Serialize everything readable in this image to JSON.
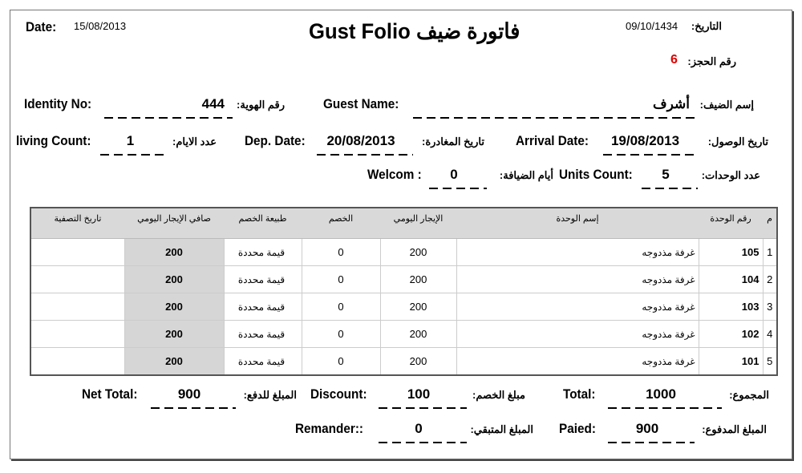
{
  "header": {
    "date_label": "Date:",
    "date_value": "15/08/2013",
    "title": "Gust Folio فاتورة ضيف",
    "hijri_label": "التاريخ:",
    "hijri_value": "09/10/1434",
    "booking_label": "رقم الحجز:",
    "booking_value": "6",
    "booking_color": "#e00000"
  },
  "guest": {
    "identity_label": "Identity No:",
    "identity_value": "444",
    "identity_label_ar": "رقم الهوية:",
    "name_label": "Guest Name:",
    "name_value": "أشرف",
    "name_label_ar": "إسم الضيف:",
    "living_label": "living Count:",
    "living_value": "1",
    "living_label_ar": "عدد الايام:",
    "dep_label": "Dep. Date:",
    "dep_value": "20/08/2013",
    "dep_label_ar": "تاريخ المغادرة:",
    "arr_label": "Arrival Date:",
    "arr_value": "19/08/2013",
    "arr_label_ar": "تاريخ الوصول:",
    "welcom_label": "Welcom :",
    "welcom_value": "0",
    "welcom_label_ar": "أيام الضيافة:",
    "units_label": "Units Count:",
    "units_value": "5",
    "units_label_ar": "عدد الوحدات:"
  },
  "table": {
    "headers": [
      "تاريخ التصفية",
      "صافي الإيجار اليومي",
      "طبيعة الخصم",
      "الخصم",
      "الإيجار اليومي",
      "إسم الوحدة",
      "رقم الوحدة",
      "م"
    ],
    "rows": [
      {
        "settle": "",
        "net": "200",
        "type": "قيمة محددة",
        "disc": "0",
        "rent": "200",
        "name": "غرفة مذدوجه",
        "unit": "105",
        "idx": "1"
      },
      {
        "settle": "",
        "net": "200",
        "type": "قيمة محددة",
        "disc": "0",
        "rent": "200",
        "name": "غرفة مذدوجه",
        "unit": "104",
        "idx": "2"
      },
      {
        "settle": "",
        "net": "200",
        "type": "قيمة محددة",
        "disc": "0",
        "rent": "200",
        "name": "غرفة مذدوجه",
        "unit": "103",
        "idx": "3"
      },
      {
        "settle": "",
        "net": "200",
        "type": "قيمة محددة",
        "disc": "0",
        "rent": "200",
        "name": "غرفة مذدوجه",
        "unit": "102",
        "idx": "4"
      },
      {
        "settle": "",
        "net": "200",
        "type": "قيمة محددة",
        "disc": "0",
        "rent": "200",
        "name": "غرفة مذدوجه",
        "unit": "101",
        "idx": "5"
      }
    ]
  },
  "totals": {
    "net_label": "Net Total:",
    "net_value": "900",
    "net_label_ar": "المبلغ للدفع:",
    "discount_label": "Discount:",
    "discount_value": "100",
    "discount_label_ar": "مبلغ الخصم:",
    "total_label": "Total:",
    "total_value": "1000",
    "total_label_ar": "المجموع:",
    "rem_label": "Remander::",
    "rem_value": "0",
    "rem_label_ar": "المبلغ المتبقي:",
    "paid_label": "Paied:",
    "paid_value": "900",
    "paid_label_ar": "المبلغ المدفوع:"
  }
}
